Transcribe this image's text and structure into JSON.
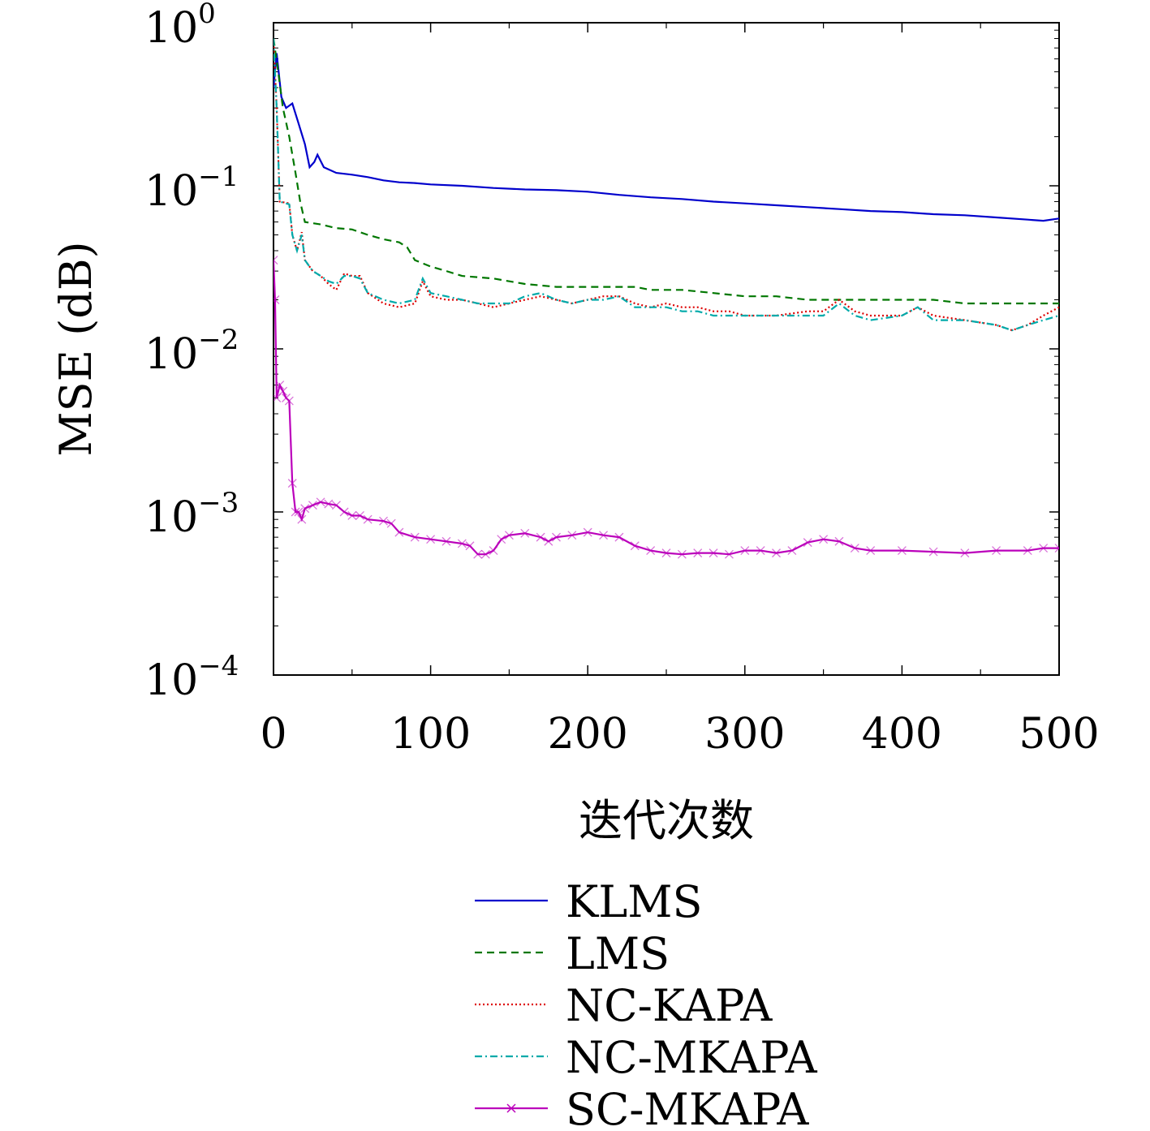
{
  "chart_data": {
    "type": "line",
    "xlabel": "迭代次数",
    "ylabel": "MSE (dB)",
    "xlim": [
      0,
      500
    ],
    "ylim": [
      0.0001,
      1
    ],
    "yscale": "log",
    "grid": false,
    "legend_position": "below",
    "x_ticks": [
      0,
      100,
      200,
      300,
      400,
      500
    ],
    "x_tick_labels": [
      "0",
      "100",
      "200",
      "300",
      "400",
      "500"
    ],
    "y_ticks": [
      0.0001,
      0.001,
      0.01,
      0.1,
      1
    ],
    "y_tick_labels": [
      {
        "base": "10",
        "exp": "−4"
      },
      {
        "base": "10",
        "exp": "−3"
      },
      {
        "base": "10",
        "exp": "−2"
      },
      {
        "base": "10",
        "exp": "−1"
      },
      {
        "base": "10",
        "exp": "0"
      }
    ],
    "series": [
      {
        "name": "KLMS",
        "color": "#0000cc",
        "dash": "solid",
        "marker": "none",
        "points": [
          [
            0,
            0.4
          ],
          [
            2,
            0.65
          ],
          [
            5,
            0.35
          ],
          [
            8,
            0.3
          ],
          [
            12,
            0.32
          ],
          [
            16,
            0.24
          ],
          [
            20,
            0.18
          ],
          [
            23,
            0.13
          ],
          [
            26,
            0.14
          ],
          [
            28,
            0.155
          ],
          [
            32,
            0.13
          ],
          [
            40,
            0.12
          ],
          [
            50,
            0.117
          ],
          [
            60,
            0.113
          ],
          [
            70,
            0.108
          ],
          [
            80,
            0.105
          ],
          [
            90,
            0.104
          ],
          [
            100,
            0.102
          ],
          [
            120,
            0.1
          ],
          [
            140,
            0.097
          ],
          [
            160,
            0.095
          ],
          [
            180,
            0.094
          ],
          [
            200,
            0.092
          ],
          [
            220,
            0.088
          ],
          [
            240,
            0.085
          ],
          [
            260,
            0.083
          ],
          [
            280,
            0.08
          ],
          [
            300,
            0.078
          ],
          [
            320,
            0.076
          ],
          [
            340,
            0.074
          ],
          [
            360,
            0.072
          ],
          [
            380,
            0.07
          ],
          [
            400,
            0.069
          ],
          [
            420,
            0.067
          ],
          [
            440,
            0.066
          ],
          [
            460,
            0.064
          ],
          [
            480,
            0.062
          ],
          [
            490,
            0.061
          ],
          [
            500,
            0.063
          ]
        ]
      },
      {
        "name": "LMS",
        "color": "#007700",
        "dash": "dashed",
        "marker": "none",
        "points": [
          [
            0,
            0.8
          ],
          [
            3,
            0.5
          ],
          [
            6,
            0.3
          ],
          [
            10,
            0.2
          ],
          [
            14,
            0.12
          ],
          [
            17,
            0.08
          ],
          [
            20,
            0.06
          ],
          [
            30,
            0.058
          ],
          [
            40,
            0.055
          ],
          [
            50,
            0.054
          ],
          [
            60,
            0.05
          ],
          [
            70,
            0.047
          ],
          [
            80,
            0.045
          ],
          [
            85,
            0.042
          ],
          [
            90,
            0.035
          ],
          [
            100,
            0.032
          ],
          [
            110,
            0.03
          ],
          [
            120,
            0.028
          ],
          [
            140,
            0.027
          ],
          [
            160,
            0.025
          ],
          [
            180,
            0.024
          ],
          [
            200,
            0.024
          ],
          [
            220,
            0.024
          ],
          [
            230,
            0.024
          ],
          [
            240,
            0.023
          ],
          [
            260,
            0.023
          ],
          [
            280,
            0.022
          ],
          [
            300,
            0.021
          ],
          [
            320,
            0.021
          ],
          [
            340,
            0.02
          ],
          [
            360,
            0.02
          ],
          [
            380,
            0.02
          ],
          [
            400,
            0.02
          ],
          [
            420,
            0.02
          ],
          [
            440,
            0.019
          ],
          [
            460,
            0.019
          ],
          [
            480,
            0.019
          ],
          [
            500,
            0.019
          ]
        ]
      },
      {
        "name": "NC-KAPA",
        "color": "#dd0000",
        "dash": "dotted",
        "marker": "none",
        "points": [
          [
            0,
            0.8
          ],
          [
            2,
            0.3
          ],
          [
            4,
            0.08
          ],
          [
            10,
            0.078
          ],
          [
            12,
            0.05
          ],
          [
            15,
            0.04
          ],
          [
            18,
            0.052
          ],
          [
            20,
            0.035
          ],
          [
            25,
            0.03
          ],
          [
            30,
            0.028
          ],
          [
            35,
            0.025
          ],
          [
            40,
            0.023
          ],
          [
            45,
            0.029
          ],
          [
            50,
            0.028
          ],
          [
            55,
            0.028
          ],
          [
            60,
            0.022
          ],
          [
            70,
            0.019
          ],
          [
            80,
            0.018
          ],
          [
            90,
            0.019
          ],
          [
            95,
            0.026
          ],
          [
            100,
            0.021
          ],
          [
            110,
            0.02
          ],
          [
            120,
            0.02
          ],
          [
            130,
            0.019
          ],
          [
            140,
            0.018
          ],
          [
            150,
            0.019
          ],
          [
            160,
            0.02
          ],
          [
            170,
            0.021
          ],
          [
            180,
            0.02
          ],
          [
            190,
            0.019
          ],
          [
            200,
            0.02
          ],
          [
            210,
            0.021
          ],
          [
            220,
            0.021
          ],
          [
            230,
            0.019
          ],
          [
            240,
            0.018
          ],
          [
            250,
            0.019
          ],
          [
            260,
            0.018
          ],
          [
            270,
            0.018
          ],
          [
            280,
            0.017
          ],
          [
            290,
            0.017
          ],
          [
            300,
            0.016
          ],
          [
            320,
            0.016
          ],
          [
            340,
            0.017
          ],
          [
            350,
            0.017
          ],
          [
            360,
            0.02
          ],
          [
            370,
            0.017
          ],
          [
            380,
            0.016
          ],
          [
            400,
            0.016
          ],
          [
            410,
            0.018
          ],
          [
            420,
            0.016
          ],
          [
            440,
            0.015
          ],
          [
            460,
            0.014
          ],
          [
            470,
            0.013
          ],
          [
            480,
            0.014
          ],
          [
            490,
            0.016
          ],
          [
            500,
            0.018
          ]
        ]
      },
      {
        "name": "NC-MKAPA",
        "color": "#00aaaa",
        "dash": "dashdot",
        "marker": "none",
        "points": [
          [
            0,
            0.8
          ],
          [
            2,
            0.3
          ],
          [
            4,
            0.08
          ],
          [
            10,
            0.077
          ],
          [
            12,
            0.05
          ],
          [
            15,
            0.04
          ],
          [
            18,
            0.05
          ],
          [
            20,
            0.035
          ],
          [
            25,
            0.03
          ],
          [
            30,
            0.028
          ],
          [
            35,
            0.026
          ],
          [
            40,
            0.025
          ],
          [
            45,
            0.028
          ],
          [
            50,
            0.028
          ],
          [
            55,
            0.027
          ],
          [
            60,
            0.022
          ],
          [
            70,
            0.02
          ],
          [
            80,
            0.019
          ],
          [
            90,
            0.02
          ],
          [
            95,
            0.027
          ],
          [
            100,
            0.022
          ],
          [
            110,
            0.021
          ],
          [
            120,
            0.02
          ],
          [
            130,
            0.019
          ],
          [
            140,
            0.019
          ],
          [
            150,
            0.019
          ],
          [
            160,
            0.021
          ],
          [
            170,
            0.022
          ],
          [
            180,
            0.02
          ],
          [
            190,
            0.019
          ],
          [
            200,
            0.02
          ],
          [
            210,
            0.02
          ],
          [
            220,
            0.021
          ],
          [
            230,
            0.018
          ],
          [
            240,
            0.018
          ],
          [
            250,
            0.018
          ],
          [
            260,
            0.017
          ],
          [
            270,
            0.017
          ],
          [
            280,
            0.016
          ],
          [
            290,
            0.016
          ],
          [
            300,
            0.016
          ],
          [
            320,
            0.016
          ],
          [
            340,
            0.016
          ],
          [
            350,
            0.016
          ],
          [
            360,
            0.019
          ],
          [
            370,
            0.016
          ],
          [
            380,
            0.015
          ],
          [
            400,
            0.016
          ],
          [
            410,
            0.018
          ],
          [
            420,
            0.015
          ],
          [
            440,
            0.015
          ],
          [
            460,
            0.014
          ],
          [
            470,
            0.013
          ],
          [
            480,
            0.014
          ],
          [
            490,
            0.015
          ],
          [
            500,
            0.016
          ]
        ]
      },
      {
        "name": "SC-MKAPA",
        "color": "#bb00bb",
        "dash": "solid",
        "marker": "x",
        "points": [
          [
            0,
            0.035
          ],
          [
            1,
            0.02
          ],
          [
            2,
            0.005
          ],
          [
            4,
            0.006
          ],
          [
            6,
            0.0055
          ],
          [
            8,
            0.005
          ],
          [
            10,
            0.0048
          ],
          [
            12,
            0.0015
          ],
          [
            14,
            0.001
          ],
          [
            16,
            0.001
          ],
          [
            18,
            0.0009
          ],
          [
            20,
            0.00105
          ],
          [
            25,
            0.0011
          ],
          [
            30,
            0.00115
          ],
          [
            35,
            0.00112
          ],
          [
            40,
            0.0011
          ],
          [
            45,
            0.001
          ],
          [
            50,
            0.00095
          ],
          [
            55,
            0.00095
          ],
          [
            60,
            0.0009
          ],
          [
            70,
            0.00088
          ],
          [
            75,
            0.00085
          ],
          [
            80,
            0.00075
          ],
          [
            90,
            0.0007
          ],
          [
            100,
            0.00068
          ],
          [
            110,
            0.00066
          ],
          [
            120,
            0.00064
          ],
          [
            125,
            0.00062
          ],
          [
            130,
            0.00055
          ],
          [
            135,
            0.00055
          ],
          [
            140,
            0.00058
          ],
          [
            145,
            0.00068
          ],
          [
            150,
            0.00072
          ],
          [
            160,
            0.00074
          ],
          [
            170,
            0.0007
          ],
          [
            175,
            0.00066
          ],
          [
            180,
            0.0007
          ],
          [
            190,
            0.00072
          ],
          [
            200,
            0.00075
          ],
          [
            210,
            0.00072
          ],
          [
            220,
            0.0007
          ],
          [
            230,
            0.00062
          ],
          [
            240,
            0.00058
          ],
          [
            250,
            0.00056
          ],
          [
            260,
            0.00055
          ],
          [
            270,
            0.00056
          ],
          [
            280,
            0.00056
          ],
          [
            290,
            0.00055
          ],
          [
            300,
            0.00058
          ],
          [
            310,
            0.00058
          ],
          [
            320,
            0.00056
          ],
          [
            330,
            0.00058
          ],
          [
            340,
            0.00065
          ],
          [
            350,
            0.00068
          ],
          [
            360,
            0.00066
          ],
          [
            370,
            0.0006
          ],
          [
            380,
            0.00058
          ],
          [
            400,
            0.00058
          ],
          [
            420,
            0.00057
          ],
          [
            440,
            0.00056
          ],
          [
            460,
            0.00058
          ],
          [
            480,
            0.00058
          ],
          [
            490,
            0.0006
          ],
          [
            500,
            0.0006
          ]
        ]
      }
    ]
  }
}
